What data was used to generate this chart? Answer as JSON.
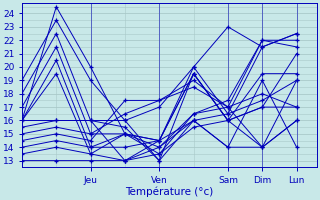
{
  "xlabel": "Température (°c)",
  "bg_color": "#c8e8e8",
  "grid_color": "#a8c8c8",
  "line_color": "#0000bb",
  "ylim": [
    12.5,
    24.8
  ],
  "yticks": [
    13,
    14,
    15,
    16,
    17,
    18,
    19,
    20,
    21,
    22,
    23,
    24
  ],
  "day_ticks": [
    1.0,
    2.0,
    3.0,
    3.5,
    4.0
  ],
  "day_labels": [
    "Jeu",
    "Ven",
    "Sam",
    "Dim",
    "Lun"
  ],
  "xlim": [
    0.0,
    4.3
  ],
  "series": [
    {
      "x": [
        0.0,
        0.5,
        1.0,
        1.5,
        2.0,
        2.5,
        3.0,
        3.5,
        4.0
      ],
      "y": [
        19.0,
        23.5,
        19.0,
        16.0,
        13.0,
        19.5,
        16.0,
        14.0,
        19.0
      ]
    },
    {
      "x": [
        0.0,
        0.5,
        1.0,
        1.5,
        2.0,
        2.5,
        3.0,
        3.5,
        4.0
      ],
      "y": [
        16.0,
        24.5,
        20.0,
        15.0,
        14.5,
        20.0,
        23.0,
        21.5,
        22.5
      ]
    },
    {
      "x": [
        0.0,
        0.5,
        1.0,
        1.5,
        2.0,
        2.5,
        3.0,
        3.5,
        4.0
      ],
      "y": [
        18.0,
        22.5,
        16.0,
        15.5,
        13.0,
        16.0,
        16.5,
        21.5,
        22.5
      ]
    },
    {
      "x": [
        0.0,
        0.5,
        1.0,
        1.5,
        2.0,
        2.5,
        3.0,
        3.5,
        4.0
      ],
      "y": [
        17.0,
        21.5,
        15.0,
        15.0,
        13.5,
        16.5,
        17.0,
        22.0,
        22.0
      ]
    },
    {
      "x": [
        0.0,
        0.5,
        1.0,
        1.5,
        2.0,
        2.5,
        3.0,
        3.5,
        4.0
      ],
      "y": [
        16.0,
        20.5,
        14.0,
        15.0,
        14.0,
        16.5,
        17.5,
        22.0,
        21.5
      ]
    },
    {
      "x": [
        0.0,
        0.5,
        1.0,
        1.5,
        2.0,
        2.5,
        3.0,
        3.5,
        4.0
      ],
      "y": [
        16.0,
        19.5,
        13.5,
        15.0,
        14.5,
        19.5,
        16.0,
        17.0,
        21.0
      ]
    },
    {
      "x": [
        0.0,
        0.5,
        1.0,
        1.5,
        2.0,
        2.5,
        3.0,
        3.5,
        4.0
      ],
      "y": [
        16.0,
        16.0,
        16.0,
        13.0,
        14.5,
        19.5,
        16.0,
        17.0,
        17.0
      ]
    },
    {
      "x": [
        0.0,
        0.5,
        1.0,
        1.5,
        2.0,
        2.5,
        3.0,
        3.5,
        4.0
      ],
      "y": [
        15.5,
        16.0,
        16.0,
        16.0,
        17.0,
        20.0,
        16.5,
        17.5,
        19.0
      ]
    },
    {
      "x": [
        0.0,
        0.5,
        1.0,
        1.5,
        2.0,
        2.5,
        3.0,
        3.5,
        4.0
      ],
      "y": [
        15.0,
        15.5,
        15.0,
        16.5,
        17.5,
        19.0,
        17.0,
        18.0,
        17.0
      ]
    },
    {
      "x": [
        0.0,
        0.5,
        1.0,
        1.5,
        2.0,
        2.5,
        3.0,
        3.5,
        4.0
      ],
      "y": [
        14.5,
        15.0,
        14.5,
        17.5,
        17.5,
        18.5,
        17.0,
        14.0,
        16.0
      ]
    },
    {
      "x": [
        0.0,
        0.5,
        1.0,
        1.5,
        2.0,
        2.5,
        3.0,
        3.5,
        4.0
      ],
      "y": [
        14.0,
        14.5,
        14.0,
        14.0,
        14.5,
        16.0,
        14.0,
        14.0,
        16.0
      ]
    },
    {
      "x": [
        0.0,
        0.5,
        1.0,
        1.5,
        2.0,
        2.5,
        3.0,
        3.5,
        4.0
      ],
      "y": [
        13.5,
        14.0,
        13.5,
        13.0,
        14.0,
        16.0,
        14.0,
        19.0,
        14.0
      ]
    },
    {
      "x": [
        0.0,
        0.5,
        1.0,
        1.5,
        2.0,
        2.5,
        3.0,
        3.5,
        4.0
      ],
      "y": [
        13.0,
        13.0,
        13.0,
        13.0,
        13.5,
        15.5,
        16.0,
        19.5,
        19.5
      ]
    }
  ]
}
